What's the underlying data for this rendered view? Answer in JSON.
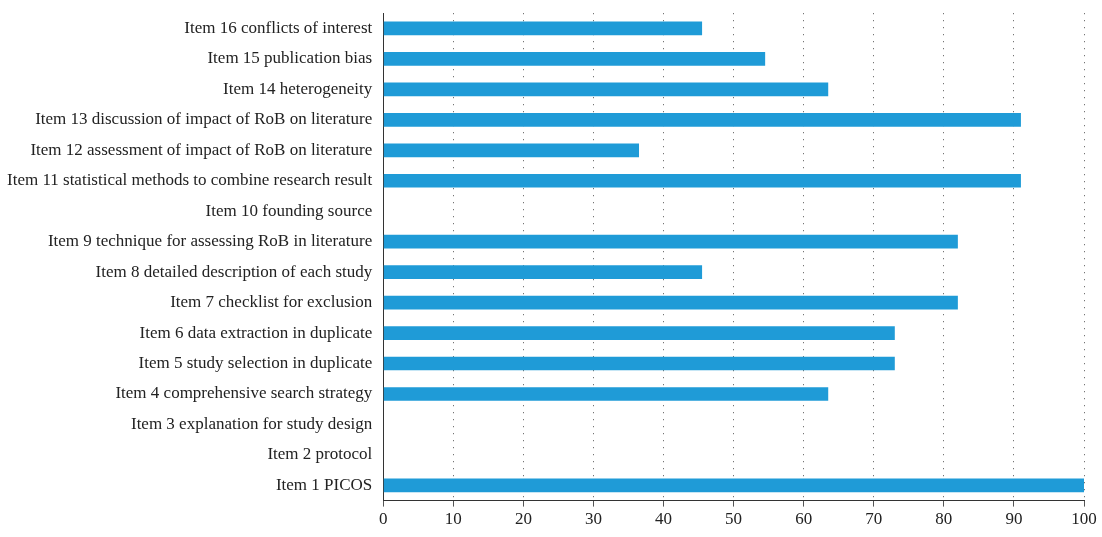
{
  "chart_data": {
    "type": "bar",
    "orientation": "horizontal",
    "color": "#1f9bd7",
    "grid": "x",
    "categories": [
      "Item 16 conflicts of interest",
      "Item 15 publication bias",
      "Item 14 heterogeneity",
      "Item 13 discussion of impact of RoB on literature",
      "Item 12 assessment of impact of RoB on literature",
      "Item 11 statistical methods to combine research result",
      "Item 10 founding source",
      "Item 9 technique for assessing RoB in literature",
      "Item 8 detailed description of each study",
      "Item 7 checklist for exclusion",
      "Item 6 data extraction in duplicate",
      "Item 5 study selection in duplicate",
      "Item 4 comprehensive search strategy",
      "Item 3 explanation for study design",
      "Item 2 protocol",
      "Item 1 PICOS"
    ],
    "values": [
      45.5,
      54.5,
      63.5,
      91,
      36.5,
      91,
      0,
      82,
      45.5,
      82,
      73,
      73,
      63.5,
      0,
      0,
      100
    ],
    "xlim": [
      0,
      100
    ],
    "xticks": [
      0,
      10,
      20,
      30,
      40,
      50,
      60,
      70,
      80,
      90,
      100
    ]
  }
}
